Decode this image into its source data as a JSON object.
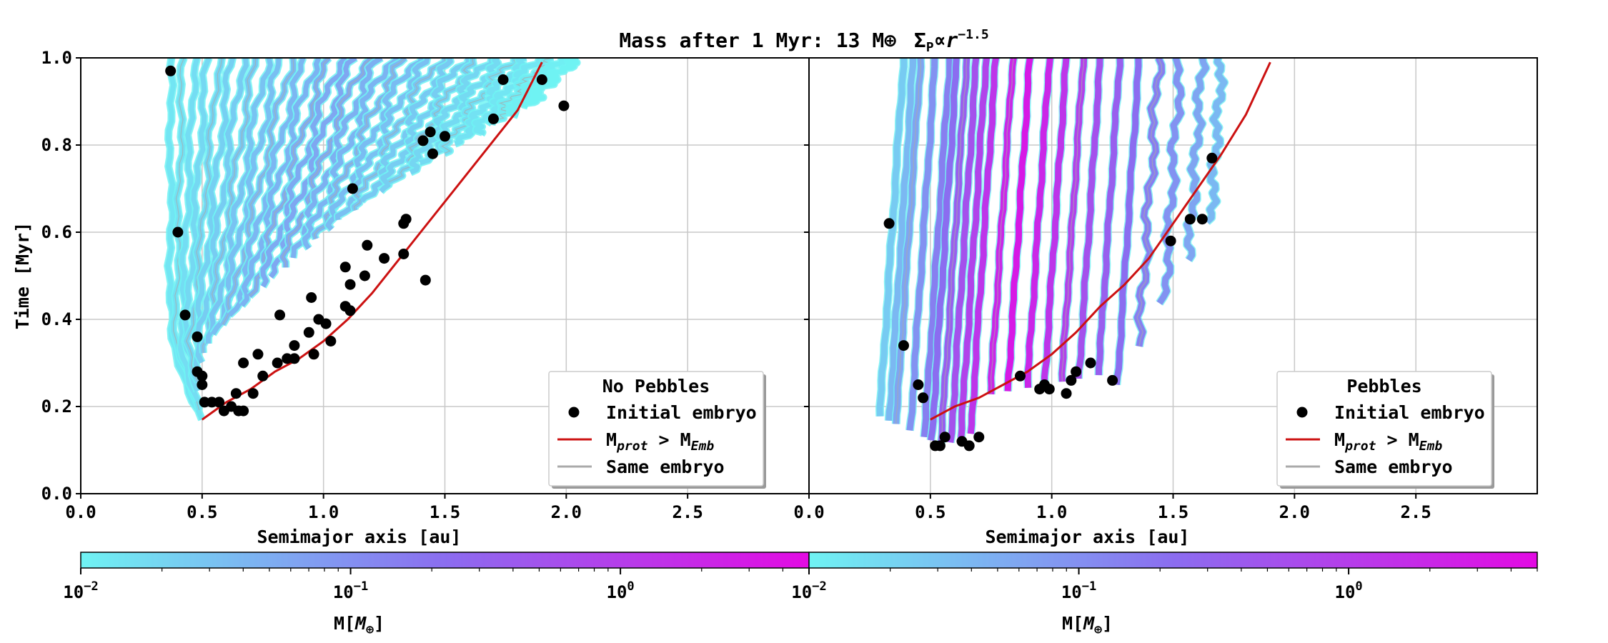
{
  "title": "Mass after 1 Myr: 13 M⊕ ΣP∝r−1.5",
  "title_parts": {
    "prefix": "Mass after 1 Myr: 13 M",
    "earth": "⊕",
    "sigma": "Σ",
    "sigma_sub": "P",
    "propto": "∝",
    "r": "r",
    "exponent": "−1.5"
  },
  "colors": {
    "track_low": "#6ff3f3",
    "track_mid": "#8b6df0",
    "track_high": "#e30ae3",
    "embryo": "#000000",
    "threshold_line": "#cc1111",
    "same_embryo": "#aaaaaa",
    "grid": "#c8c8c8"
  },
  "chart_data": [
    {
      "type": "scatter",
      "panel": "left",
      "ylabel": "Time [Myr]",
      "xlabel": "Semimajor axis [au]",
      "xlim": [
        0.0,
        3.0
      ],
      "ylim": [
        0.0,
        1.0
      ],
      "xticks": [
        "0.0",
        "0.5",
        "1.0",
        "1.5",
        "2.0",
        "2.5"
      ],
      "yticks": [
        "0.0",
        "0.2",
        "0.4",
        "0.6",
        "0.8",
        "1.0"
      ],
      "grid": true,
      "legend": {
        "title": "No Pebbles",
        "placement": "lower-right",
        "entries": [
          {
            "label": "Initial embryo",
            "marker": "dot"
          },
          {
            "label_base": "M",
            "label_sub1": "prot",
            "label_mid": " > M",
            "label_sub2": "Emb",
            "marker": "red-line"
          },
          {
            "label": "Same embryo",
            "marker": "grey-line"
          }
        ]
      },
      "initial_embryos": [
        [
          0.37,
          0.97
        ],
        [
          0.4,
          0.6
        ],
        [
          0.43,
          0.41
        ],
        [
          0.48,
          0.36
        ],
        [
          0.48,
          0.28
        ],
        [
          0.5,
          0.27
        ],
        [
          0.5,
          0.25
        ],
        [
          0.51,
          0.21
        ],
        [
          0.54,
          0.21
        ],
        [
          0.57,
          0.21
        ],
        [
          0.59,
          0.19
        ],
        [
          0.62,
          0.2
        ],
        [
          0.64,
          0.23
        ],
        [
          0.65,
          0.19
        ],
        [
          0.67,
          0.19
        ],
        [
          0.67,
          0.3
        ],
        [
          0.71,
          0.23
        ],
        [
          0.73,
          0.32
        ],
        [
          0.75,
          0.27
        ],
        [
          0.81,
          0.3
        ],
        [
          0.82,
          0.41
        ],
        [
          0.85,
          0.31
        ],
        [
          0.88,
          0.31
        ],
        [
          0.88,
          0.34
        ],
        [
          0.94,
          0.37
        ],
        [
          0.95,
          0.45
        ],
        [
          0.96,
          0.32
        ],
        [
          0.98,
          0.4
        ],
        [
          1.01,
          0.39
        ],
        [
          1.03,
          0.35
        ],
        [
          1.09,
          0.52
        ],
        [
          1.09,
          0.43
        ],
        [
          1.11,
          0.48
        ],
        [
          1.11,
          0.42
        ],
        [
          1.12,
          0.7
        ],
        [
          1.17,
          0.5
        ],
        [
          1.18,
          0.57
        ],
        [
          1.25,
          0.54
        ],
        [
          1.33,
          0.55
        ],
        [
          1.33,
          0.62
        ],
        [
          1.34,
          0.63
        ],
        [
          1.41,
          0.81
        ],
        [
          1.42,
          0.49
        ],
        [
          1.44,
          0.83
        ],
        [
          1.45,
          0.78
        ],
        [
          1.5,
          0.82
        ],
        [
          1.7,
          0.86
        ],
        [
          1.74,
          0.95
        ],
        [
          1.9,
          0.95
        ],
        [
          1.99,
          0.89
        ]
      ],
      "threshold_curve": [
        [
          0.5,
          0.17
        ],
        [
          0.55,
          0.19
        ],
        [
          0.6,
          0.21
        ],
        [
          0.7,
          0.24
        ],
        [
          0.8,
          0.28
        ],
        [
          0.9,
          0.31
        ],
        [
          1.0,
          0.35
        ],
        [
          1.1,
          0.4
        ],
        [
          1.2,
          0.46
        ],
        [
          1.3,
          0.53
        ],
        [
          1.4,
          0.6
        ],
        [
          1.5,
          0.67
        ],
        [
          1.6,
          0.74
        ],
        [
          1.7,
          0.81
        ],
        [
          1.8,
          0.88
        ],
        [
          1.9,
          0.99
        ]
      ],
      "tracks": {
        "left_edge_top": 0.37,
        "right_edge": [
          [
            0.5,
            0.17
          ],
          [
            0.6,
            0.2
          ],
          [
            0.7,
            0.23
          ],
          [
            0.8,
            0.27
          ],
          [
            0.9,
            0.3
          ],
          [
            1.0,
            0.34
          ],
          [
            1.1,
            0.39
          ],
          [
            1.2,
            0.44
          ],
          [
            1.3,
            0.51
          ],
          [
            1.4,
            0.58
          ],
          [
            1.5,
            0.65
          ],
          [
            1.6,
            0.72
          ],
          [
            1.7,
            0.79
          ],
          [
            1.8,
            0.86
          ],
          [
            1.9,
            0.93
          ],
          [
            2.0,
            0.98
          ],
          [
            2.05,
            1.0
          ]
        ],
        "count": 34,
        "mass_log10_range": [
          -2.0,
          -0.6
        ]
      },
      "colorbar": {
        "label_base": "M[",
        "label_M": "M",
        "label_sub": "⊕",
        "label_close": "]",
        "scale": "log",
        "range": [
          0.01,
          5.0
        ],
        "tick_base": "10",
        "ticks": [
          {
            "exp": "−2",
            "value": 0.01
          },
          {
            "exp": "−1",
            "value": 0.1
          },
          {
            "exp": "0",
            "value": 1.0
          }
        ]
      }
    },
    {
      "type": "scatter",
      "panel": "right",
      "ylabel": "",
      "xlabel": "Semimajor axis [au]",
      "xlim": [
        0.0,
        3.0
      ],
      "ylim": [
        0.0,
        1.0
      ],
      "xticks": [
        "0.0",
        "0.5",
        "1.0",
        "1.5",
        "2.0",
        "2.5"
      ],
      "grid": true,
      "legend": {
        "title": "Pebbles",
        "placement": "lower-right",
        "entries": [
          {
            "label": "Initial embryo",
            "marker": "dot"
          },
          {
            "label_base": "M",
            "label_sub1": "prot",
            "label_mid": " > M",
            "label_sub2": "Emb",
            "marker": "red-line"
          },
          {
            "label": "Same embryo",
            "marker": "grey-line"
          }
        ]
      },
      "initial_embryos": [
        [
          0.33,
          0.62
        ],
        [
          0.39,
          0.34
        ],
        [
          0.45,
          0.25
        ],
        [
          0.47,
          0.22
        ],
        [
          0.52,
          0.11
        ],
        [
          0.54,
          0.11
        ],
        [
          0.56,
          0.13
        ],
        [
          0.63,
          0.12
        ],
        [
          0.66,
          0.11
        ],
        [
          0.7,
          0.13
        ],
        [
          0.87,
          0.27
        ],
        [
          0.95,
          0.24
        ],
        [
          0.97,
          0.25
        ],
        [
          0.99,
          0.24
        ],
        [
          1.06,
          0.23
        ],
        [
          1.08,
          0.26
        ],
        [
          1.1,
          0.28
        ],
        [
          1.16,
          0.3
        ],
        [
          1.25,
          0.26
        ],
        [
          1.49,
          0.58
        ],
        [
          1.57,
          0.63
        ],
        [
          1.62,
          0.63
        ],
        [
          1.66,
          0.77
        ]
      ],
      "threshold_curve": [
        [
          0.5,
          0.17
        ],
        [
          0.6,
          0.2
        ],
        [
          0.7,
          0.22
        ],
        [
          0.8,
          0.25
        ],
        [
          0.9,
          0.28
        ],
        [
          1.0,
          0.32
        ],
        [
          1.1,
          0.37
        ],
        [
          1.2,
          0.43
        ],
        [
          1.3,
          0.48
        ],
        [
          1.4,
          0.54
        ],
        [
          1.5,
          0.62
        ],
        [
          1.6,
          0.7
        ],
        [
          1.7,
          0.78
        ],
        [
          1.8,
          0.87
        ],
        [
          1.9,
          0.99
        ]
      ],
      "tracks": {
        "vertical": [
          0.33,
          0.37,
          0.4,
          0.46,
          0.52,
          0.55,
          0.59,
          0.63,
          0.67,
          0.71,
          0.78,
          0.85,
          0.93,
          1.0,
          1.07,
          1.14,
          1.22,
          1.3,
          1.38,
          1.47,
          1.56,
          1.64
        ],
        "count": 22,
        "mass_log10_range": [
          -1.6,
          0.5
        ]
      },
      "colorbar": {
        "label_base": "M[",
        "label_M": "M",
        "label_sub": "⊕",
        "label_close": "]",
        "scale": "log",
        "range": [
          0.01,
          5.0
        ],
        "tick_base": "10",
        "ticks": [
          {
            "exp": "−2",
            "value": 0.01
          },
          {
            "exp": "−1",
            "value": 0.1
          },
          {
            "exp": "0",
            "value": 1.0
          }
        ]
      }
    }
  ]
}
